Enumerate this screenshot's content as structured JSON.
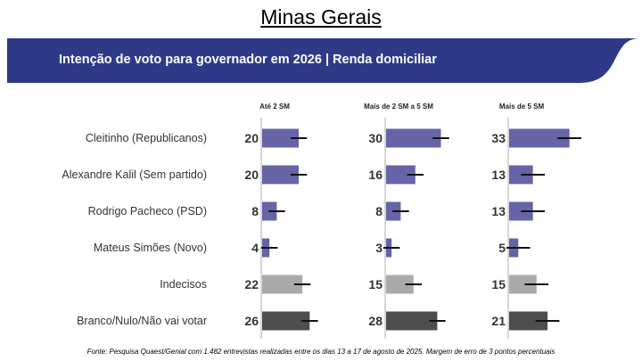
{
  "page_title": "Minas Gerais",
  "header": {
    "subtitle": "Intenção de voto para governador em 2026 | Renda domiciliar",
    "color": "#2e3a87"
  },
  "source": "Fonte: Pesquisa Quaest/Genial com 1.482 entrevistas realizadas entre os dias 13 a 17 de agosto de 2025. Margem de erro de 3 pontos percentuais",
  "chart_data": {
    "type": "bar",
    "orientation": "horizontal",
    "categories": [
      "Cleitinho (Republicanos)",
      "Alexandre Kalil (Sem partido)",
      "Rodrigo Pacheco (PSD)",
      "Mateus Simões (Novo)",
      "Indecisos",
      "Branco/Nulo/Não vai votar"
    ],
    "series": [
      {
        "name": "Até 2 SM",
        "values": [
          20,
          20,
          8,
          4,
          22,
          26
        ],
        "error": 4.5
      },
      {
        "name": "Mais de 2 SM a 5 SM",
        "values": [
          30,
          16,
          8,
          3,
          15,
          28
        ],
        "error": 4.5
      },
      {
        "name": "Mais de 5 SM",
        "values": [
          33,
          13,
          13,
          5,
          15,
          21
        ],
        "error": 6.5
      }
    ],
    "bar_colors": [
      "#6663a6",
      "#6663a6",
      "#6663a6",
      "#6663a6",
      "#aaaaaa",
      "#4d4d4d"
    ],
    "error_bar_color": "#111111",
    "axis_color": "#c8c8c8",
    "xlim": [
      0,
      40
    ],
    "grid": false
  }
}
